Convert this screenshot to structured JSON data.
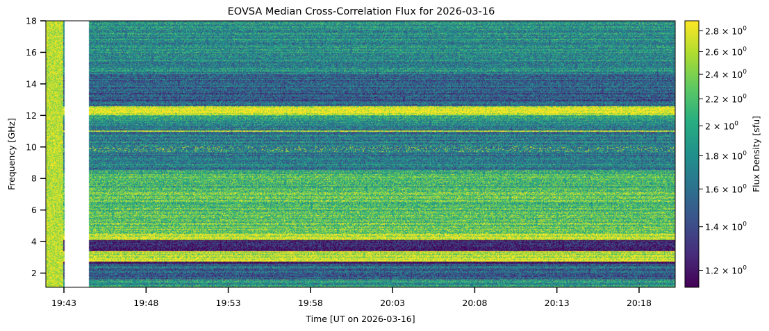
{
  "chart_data": {
    "type": "heatmap",
    "title": "EOVSA Median Cross-Correlation Flux for 2026-03-16",
    "xlabel": "Time [UT on 2026-03-16]",
    "ylabel": "Frequency [GHz]",
    "x_ticks": [
      "19:43",
      "19:48",
      "19:53",
      "19:58",
      "20:03",
      "20:08",
      "20:13",
      "20:18"
    ],
    "x_range_minutes": [
      -1.1,
      37.2
    ],
    "y_ticks": [
      2,
      4,
      6,
      8,
      10,
      12,
      14,
      16,
      18
    ],
    "ylim": [
      1.1,
      18.0
    ],
    "colormap": "viridis",
    "colorbar": {
      "label": "Flux Density [sfu]",
      "scale": "log",
      "range": [
        1.13,
        2.9
      ],
      "tick_mantissas": [
        "1.2",
        "1.4",
        "1.6",
        "1.8",
        "2",
        "2.2",
        "2.4",
        "2.6",
        "2.8"
      ],
      "tick_values": [
        1.2,
        1.4,
        1.6,
        1.8,
        2.0,
        2.2,
        2.4,
        2.6,
        2.8
      ],
      "tick_exponent": "0"
    },
    "data_gap": {
      "start_minute": 0.0,
      "end_minute": 1.5
    },
    "bands": [
      {
        "from_ghz": 1.1,
        "to_ghz": 1.6,
        "level": 0.55
      },
      {
        "from_ghz": 1.6,
        "to_ghz": 2.6,
        "level": 0.35
      },
      {
        "from_ghz": 2.6,
        "to_ghz": 2.75,
        "level": 0.02
      },
      {
        "from_ghz": 2.75,
        "to_ghz": 3.4,
        "level": 0.92
      },
      {
        "from_ghz": 3.4,
        "to_ghz": 4.1,
        "level": 0.05
      },
      {
        "from_ghz": 4.1,
        "to_ghz": 4.5,
        "level": 0.97
      },
      {
        "from_ghz": 4.5,
        "to_ghz": 7.0,
        "level": 0.72
      },
      {
        "from_ghz": 7.0,
        "to_ghz": 8.5,
        "level": 0.65
      },
      {
        "from_ghz": 8.5,
        "to_ghz": 11.6,
        "level": 0.42
      },
      {
        "from_ghz": 11.6,
        "to_ghz": 12.0,
        "level": 0.6
      },
      {
        "from_ghz": 12.0,
        "to_ghz": 12.6,
        "level": 0.98
      },
      {
        "from_ghz": 12.6,
        "to_ghz": 14.6,
        "level": 0.3
      },
      {
        "from_ghz": 14.6,
        "to_ghz": 18.0,
        "level": 0.48
      }
    ],
    "bright_lines_ghz": [
      7.1,
      11.0
    ],
    "bursts": {
      "freq_ghz": 9.9,
      "level": 0.85
    }
  }
}
